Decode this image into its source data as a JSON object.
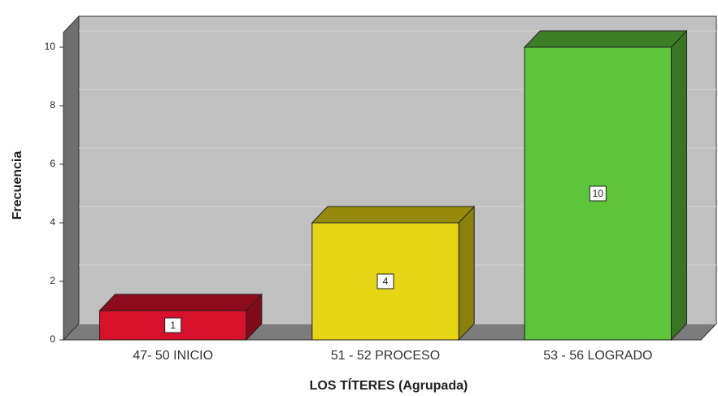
{
  "chart_data": {
    "type": "bar3d",
    "categories": [
      "47- 50 INICIO",
      "51 - 52 PROCESO",
      "53 - 56 LOGRADO"
    ],
    "values": [
      1,
      4,
      10
    ],
    "colors": [
      "#d8112c",
      "#e6d514",
      "#5ec43a"
    ],
    "xlabel": "LOS TÍTERES  (Agrupada)",
    "ylabel": "Frecuencia",
    "ylim": [
      0,
      10.5
    ],
    "yticks": [
      0,
      2,
      4,
      6,
      8,
      10
    ],
    "grid": true
  }
}
